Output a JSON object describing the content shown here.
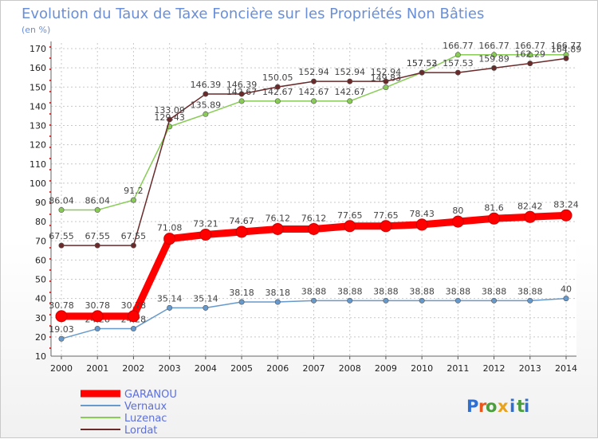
{
  "chart_data": {
    "type": "line",
    "title": "Evolution du Taux de Taxe Foncière sur les Propriétés Non Bâties",
    "ylabel": "(en %)",
    "xlabel": "",
    "categories": [
      "2000",
      "2001",
      "2002",
      "2003",
      "2004",
      "2005",
      "2006",
      "2007",
      "2008",
      "2009",
      "2010",
      "2011",
      "2012",
      "2013",
      "2014"
    ],
    "ylim": [
      10,
      170
    ],
    "yticks": [
      10,
      20,
      30,
      40,
      50,
      60,
      70,
      80,
      90,
      100,
      110,
      120,
      130,
      140,
      150,
      160,
      170
    ],
    "series": [
      {
        "name": "GARANOU",
        "color": "#ff0000",
        "values": [
          30.78,
          30.78,
          30.78,
          71.08,
          73.21,
          74.67,
          76.12,
          76.12,
          77.65,
          77.65,
          78.43,
          80,
          81.6,
          82.42,
          83.24
        ],
        "labels": [
          "30.78",
          "30.78",
          "30.78",
          "71.08",
          "73.21",
          "74.67",
          "76.12",
          "76.12",
          "77.65",
          "77.65",
          "78.43",
          "80",
          "81.6",
          "82.42",
          "83.24"
        ]
      },
      {
        "name": "Vernaux",
        "color": "#6699cc",
        "values": [
          19.03,
          24.28,
          24.28,
          35.14,
          35.14,
          38.18,
          38.18,
          38.88,
          38.88,
          38.88,
          38.88,
          38.88,
          38.88,
          38.88,
          40
        ],
        "labels": [
          "19.03",
          "24.28",
          "24.28",
          "35.14",
          "35.14",
          "38.18",
          "38.18",
          "38.88",
          "38.88",
          "38.88",
          "38.88",
          "38.88",
          "38.88",
          "38.88",
          "40"
        ]
      },
      {
        "name": "Luzenac",
        "color": "#88cc55",
        "values": [
          86.04,
          86.04,
          91.2,
          129.43,
          135.89,
          142.67,
          142.67,
          142.67,
          142.67,
          149.83,
          157.53,
          166.77,
          166.77,
          166.77,
          166.77
        ],
        "labels": [
          "86.04",
          "86.04",
          "91.2",
          "129.43",
          "135.89",
          "142.67",
          "142.67",
          "142.67",
          "142.67",
          "149.83",
          "157.53",
          "166.77",
          "166.77",
          "166.77",
          "166.77"
        ]
      },
      {
        "name": "Lordat",
        "color": "#6a2a2a",
        "values": [
          67.55,
          67.55,
          67.55,
          133.09,
          146.39,
          146.39,
          150.05,
          152.94,
          152.94,
          152.94,
          157.52,
          157.53,
          159.89,
          162.29,
          164.89
        ],
        "labels": [
          "67.55",
          "67.55",
          "67.55",
          "133.09",
          "146.39",
          "146.39",
          "150.05",
          "152.94",
          "152.94",
          "152.94",
          "157.52",
          "157.53",
          "159.89",
          "162.29",
          "164.89"
        ]
      }
    ],
    "legend": "bottom-left"
  },
  "logo": {
    "text": "Proxiti",
    "letters": [
      "P",
      "r",
      "o",
      "x",
      "i",
      "t",
      "i"
    ],
    "colors": [
      "#2f6fd0",
      "#e8581c",
      "#4a9e3b",
      "#e8a21c",
      "#2f6fd0",
      "#4a9e3b",
      "#2f6fd0"
    ]
  }
}
